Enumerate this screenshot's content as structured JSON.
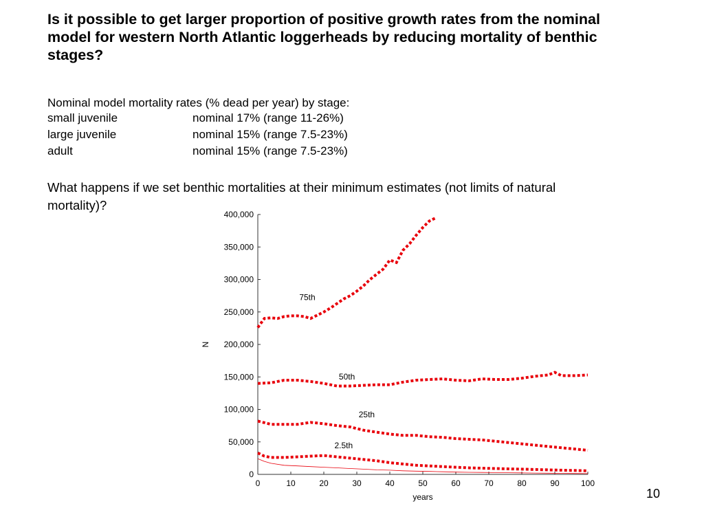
{
  "slide": {
    "title": "Is it possible to get larger proportion of positive growth rates from the nominal model for western North Atlantic loggerheads by reducing  mortality of benthic stages?",
    "intro": "Nominal model mortality rates (% dead per year) by stage:",
    "stages": [
      {
        "name": "small juvenile",
        "rate": "nominal 17% (range 11-26%)"
      },
      {
        "name": "large juvenile",
        "rate": "nominal 15% (range 7.5-23%)"
      },
      {
        "name": "adult",
        "rate": "nominal 15% (range 7.5-23%)"
      }
    ],
    "question": "What happens if we set benthic mortalities at their minimum estimates (not limits of natural mortality)?",
    "page_number": "10"
  },
  "chart_data": {
    "type": "line",
    "xlabel": "years",
    "ylabel": "N",
    "xlim": [
      0,
      100
    ],
    "ylim": [
      0,
      400000
    ],
    "x_ticks": [
      0,
      10,
      20,
      30,
      40,
      50,
      60,
      70,
      80,
      90,
      100
    ],
    "y_ticks": [
      0,
      50000,
      100000,
      150000,
      200000,
      250000,
      300000,
      350000,
      400000
    ],
    "y_tick_labels": [
      "0",
      "50,000",
      "100,000",
      "150,000",
      "200,000",
      "250,000",
      "300,000",
      "350,000",
      "400,000"
    ],
    "grid": false,
    "series_color": "#e8000b",
    "series": [
      {
        "label": "75th",
        "style": "dotted",
        "x": [
          0,
          2,
          4,
          6,
          8,
          10,
          12,
          14,
          16,
          18,
          20,
          22,
          24,
          26,
          28,
          30,
          32,
          34,
          36,
          38,
          40,
          42,
          44,
          46,
          48,
          50,
          52,
          54
        ],
        "y": [
          226000,
          240000,
          241000,
          240000,
          243000,
          244000,
          244000,
          243000,
          240000,
          245000,
          250000,
          256000,
          263000,
          270000,
          275000,
          282000,
          290000,
          300000,
          308000,
          316000,
          330000,
          326000,
          345000,
          355000,
          368000,
          380000,
          390000,
          395000
        ]
      },
      {
        "label": "50th",
        "style": "dotted",
        "x": [
          0,
          4,
          8,
          12,
          16,
          20,
          24,
          28,
          32,
          36,
          40,
          44,
          48,
          52,
          56,
          60,
          64,
          68,
          72,
          76,
          80,
          84,
          88,
          90,
          92,
          96,
          100
        ],
        "y": [
          140000,
          141000,
          145000,
          145000,
          143000,
          140000,
          136000,
          136000,
          137000,
          138000,
          138000,
          142000,
          145000,
          146000,
          147000,
          145000,
          144000,
          147000,
          146000,
          146000,
          148000,
          151000,
          153000,
          157000,
          152000,
          152000,
          153000
        ]
      },
      {
        "label": "25th",
        "style": "dotted",
        "x": [
          0,
          4,
          8,
          12,
          16,
          20,
          24,
          28,
          32,
          36,
          40,
          44,
          48,
          52,
          56,
          60,
          64,
          68,
          72,
          76,
          80,
          84,
          88,
          92,
          96,
          100
        ],
        "y": [
          82000,
          77000,
          77000,
          77000,
          80000,
          78000,
          75000,
          73000,
          68000,
          65000,
          62000,
          60000,
          60000,
          58000,
          57000,
          55000,
          54000,
          53000,
          51000,
          49000,
          47000,
          45000,
          43000,
          41000,
          39000,
          37000
        ]
      },
      {
        "label": "2.5th",
        "style": "dotted",
        "x": [
          0,
          2,
          4,
          8,
          12,
          16,
          20,
          24,
          28,
          32,
          36,
          40,
          44,
          48,
          52,
          56,
          60,
          64,
          68,
          72,
          76,
          80,
          84,
          88,
          92,
          96,
          100
        ],
        "y": [
          33000,
          28000,
          26000,
          26000,
          27000,
          28000,
          29000,
          27000,
          25000,
          23000,
          21000,
          18000,
          16000,
          14000,
          13000,
          12000,
          11000,
          10000,
          9500,
          9000,
          8500,
          8000,
          7500,
          7000,
          6500,
          6000,
          5500
        ]
      },
      {
        "label": "",
        "style": "solid",
        "x": [
          0,
          2,
          4,
          8,
          12,
          16,
          20,
          24,
          28,
          32,
          36,
          40,
          44,
          48,
          52,
          56,
          60,
          64,
          68,
          72,
          76,
          80,
          84,
          88,
          92,
          96,
          100
        ],
        "y": [
          24000,
          20000,
          17000,
          14000,
          13000,
          12000,
          11000,
          10000,
          9000,
          8000,
          7000,
          6500,
          5500,
          5000,
          4500,
          4000,
          3500,
          3200,
          3000,
          2800,
          2500,
          2300,
          2000,
          1800,
          1600,
          1400,
          1200
        ]
      }
    ],
    "annotations": [
      {
        "text": "75th",
        "x": 15,
        "y": 268000
      },
      {
        "text": "50th",
        "x": 27,
        "y": 146000
      },
      {
        "text": "25th",
        "x": 33,
        "y": 88000
      },
      {
        "text": "2.5th",
        "x": 26,
        "y": 40000
      }
    ]
  }
}
